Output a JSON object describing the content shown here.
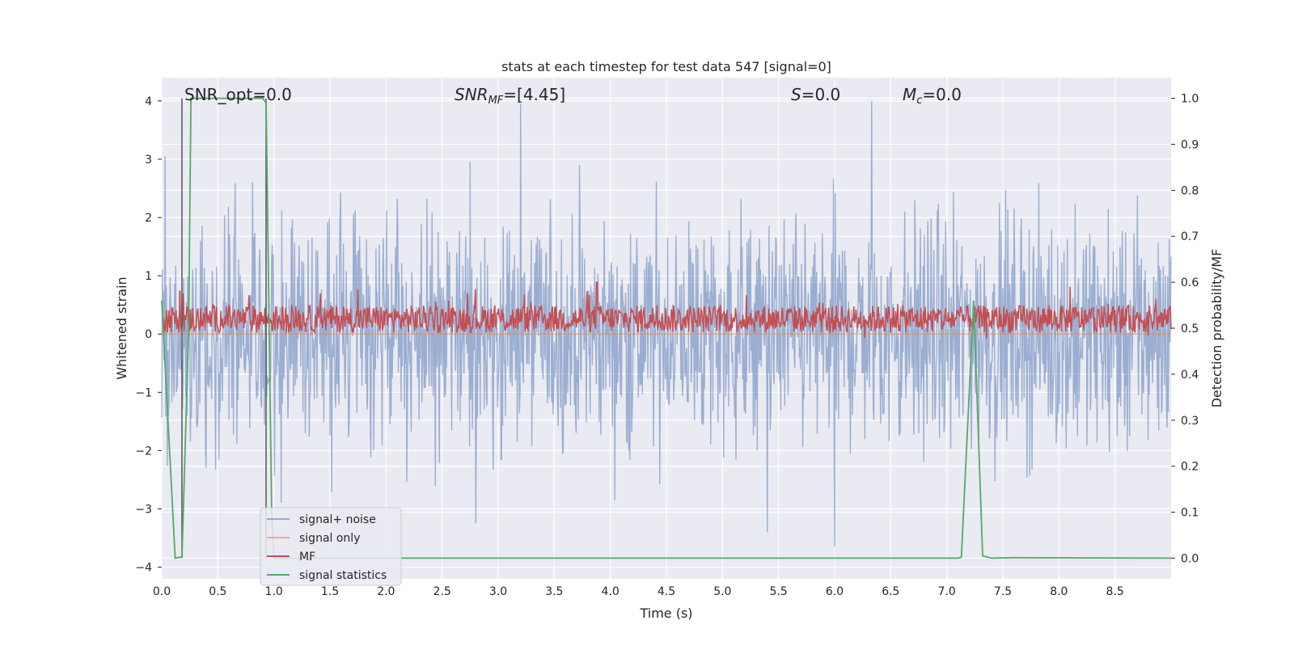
{
  "chart_data": {
    "type": "line",
    "title": "stats at each timestep for test data 547 [signal=0]",
    "xlabel": "Time (s)",
    "ylabel": "Whitened strain",
    "ylabel_right": "Detection probability/MF",
    "xlim": [
      0.0,
      9.0
    ],
    "ylim": [
      -4.2,
      4.4
    ],
    "ylim_right": [
      -0.045,
      1.045
    ],
    "x_ticks": [
      "0.0",
      "0.5",
      "1.0",
      "1.5",
      "2.0",
      "2.5",
      "3.0",
      "3.5",
      "4.0",
      "4.5",
      "5.0",
      "5.5",
      "6.0",
      "6.5",
      "7.0",
      "7.5",
      "8.0",
      "8.5"
    ],
    "y_ticks": [
      "4",
      "3",
      "2",
      "1",
      "0",
      "−1",
      "−2",
      "−3",
      "−4"
    ],
    "y_ticks_right": [
      "1.0",
      "0.9",
      "0.8",
      "0.7",
      "0.6",
      "0.5",
      "0.4",
      "0.3",
      "0.2",
      "0.1",
      "0.0"
    ],
    "grid": true,
    "legend_position": "lower-left",
    "annotations": {
      "snr_opt": "SNR_opt=0.0",
      "snr_mf_main": "SNR",
      "snr_mf_sub": "MF",
      "snr_mf_val": "=[4.45]",
      "s_main": "S",
      "s_val": "=0.0",
      "mc_main": "M",
      "mc_sub": "c",
      "mc_val": "=0.0"
    },
    "series": [
      {
        "name": "signal+ noise",
        "color": "#4c72b0",
        "axis": "left",
        "description_values": "dense noise, approx. amplitude ±2.5, peaks to 4.0 and -3.6",
        "amplitude": 1.0,
        "peaks": [
          [
            0.03,
            3.05
          ],
          [
            3.2,
            3.95
          ],
          [
            6.33,
            4.0
          ],
          [
            6.0,
            -3.65
          ],
          [
            5.4,
            -3.4
          ],
          [
            2.8,
            -3.25
          ]
        ]
      },
      {
        "name": "signal only",
        "color": "#dd8452",
        "axis": "left",
        "values_const": 0.0
      },
      {
        "name": "MF",
        "color": "#c44e52",
        "axis": "right",
        "baseline": 0.52,
        "spread": 0.03,
        "peaks": [
          [
            3.88,
            0.6
          ],
          [
            1.75,
            0.585
          ],
          [
            8.1,
            0.59
          ]
        ]
      },
      {
        "name": "signal statistics",
        "color": "#55a868",
        "axis": "right",
        "x": [
          0.0,
          0.12,
          0.18,
          0.24,
          0.26,
          0.9,
          0.93,
          0.98,
          1.0,
          7.1,
          7.13,
          7.24,
          7.32,
          7.4,
          7.6,
          9.0
        ],
        "y": [
          0.56,
          0.0,
          0.003,
          0.5,
          1.0,
          1.0,
          0.99,
          0.1,
          0.0,
          0.0,
          0.002,
          0.56,
          0.005,
          0.0,
          0.001,
          0.0
        ]
      }
    ],
    "vlines": [
      {
        "x": 0.18,
        "y_from": 1.0,
        "y_to": 0.0,
        "axis": "right",
        "color": "#555555"
      },
      {
        "x": 0.93,
        "y_from": 1.0,
        "y_to": 0.0,
        "axis": "right",
        "color": "#555555"
      }
    ]
  }
}
